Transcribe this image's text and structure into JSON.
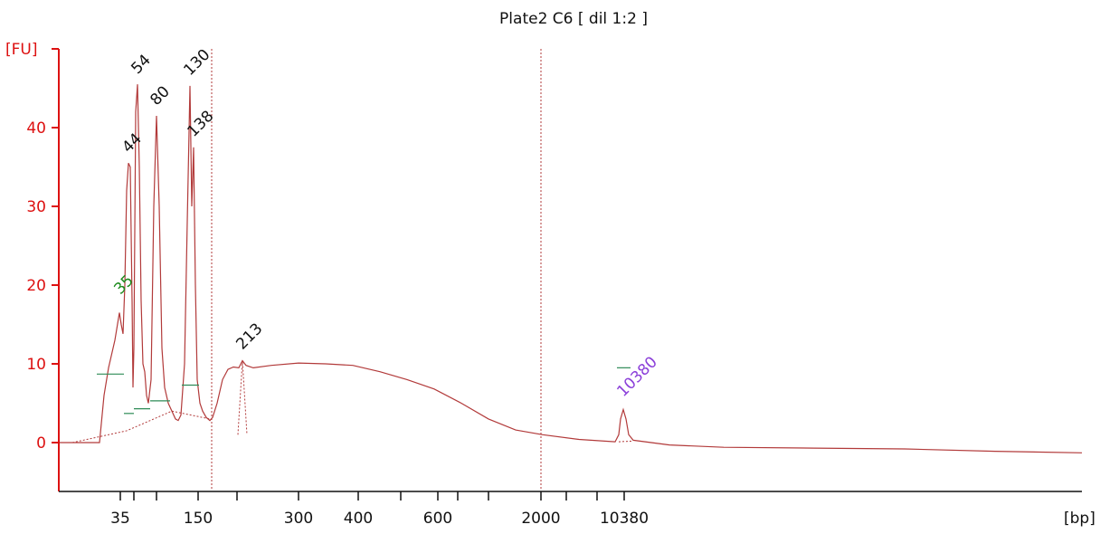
{
  "chart_data": {
    "type": "line",
    "title": "Plate2 C6  [ dil 1:2 ]",
    "ylabel": "[FU]",
    "xlabel": "[bp]",
    "ylim": [
      -6,
      50
    ],
    "yticks": [
      0,
      10,
      20,
      30,
      40
    ],
    "xticks": [
      {
        "label": "35"
      },
      {
        "label": ""
      },
      {
        "label": ""
      },
      {
        "label": "150"
      },
      {
        "label": ""
      },
      {
        "label": "300"
      },
      {
        "label": "400"
      },
      {
        "label": ""
      },
      {
        "label": "600"
      },
      {
        "label": ""
      },
      {
        "label": ""
      },
      {
        "label": "2000"
      },
      {
        "label": ""
      },
      {
        "label": ""
      },
      {
        "label": "10380"
      }
    ],
    "peak_labels": [
      {
        "label": "35",
        "fu": 16.5,
        "color": "#1c8a1c"
      },
      {
        "label": "44",
        "fu": 35.5,
        "color": "#111111"
      },
      {
        "label": "54",
        "fu": 45.5,
        "color": "#111111"
      },
      {
        "label": "80",
        "fu": 41.5,
        "color": "#111111"
      },
      {
        "label": "130",
        "fu": 45.3,
        "color": "#111111"
      },
      {
        "label": "138",
        "fu": 37.5,
        "color": "#111111"
      },
      {
        "label": "213",
        "fu": 10.4,
        "color": "#111111"
      },
      {
        "label": "10380",
        "fu": 4.2,
        "color": "#8b3fd9"
      }
    ],
    "colors": {
      "trace": "#b23a3a",
      "axis": "#dd1111",
      "marker_line": "#2e8b57",
      "title": "#111111"
    },
    "grid": false
  }
}
